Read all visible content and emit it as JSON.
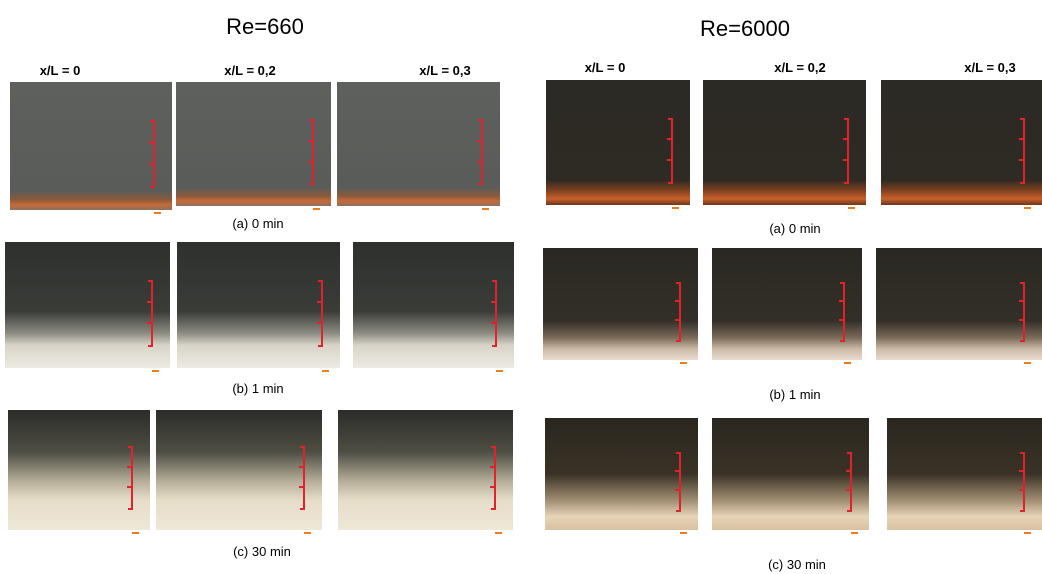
{
  "panels": [
    {
      "title": "Re=660",
      "columns": [
        "x/L = 0",
        "x/L = 0,2",
        "x/L = 0,3"
      ],
      "captions": [
        "(a) 0 min",
        "(b) 1 min",
        "(c) 30 min"
      ]
    },
    {
      "title": "Re=6000",
      "columns": [
        "x/L = 0",
        "x/L = 0,2",
        "x/L = 0,3"
      ],
      "captions": [
        "(a) 0 min",
        "(b) 1 min",
        "(c) 30 min"
      ]
    }
  ]
}
